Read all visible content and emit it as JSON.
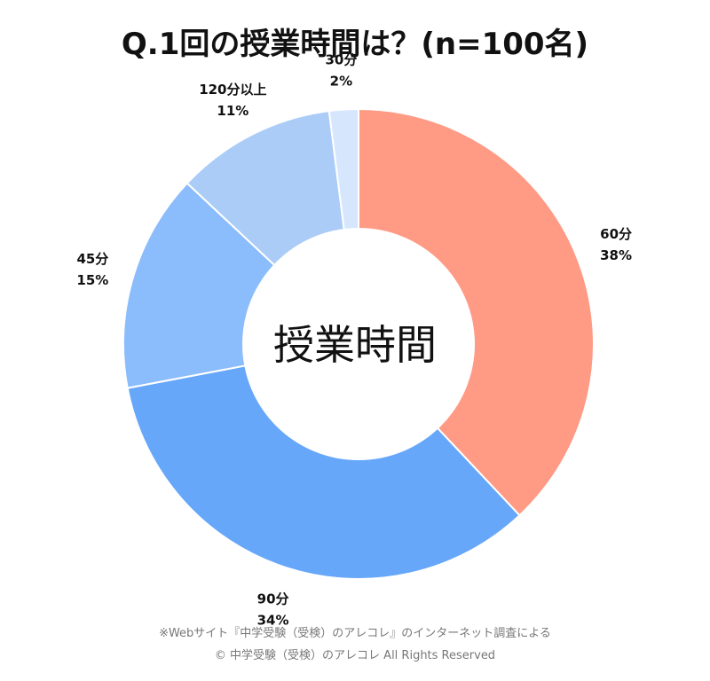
{
  "chart_data": {
    "type": "pie",
    "title": "Q.1回の授業時間は？(n=100名)",
    "center_label": "授業時間",
    "slices": [
      {
        "name": "60分",
        "value": 38,
        "label": "38%",
        "color": "#FF9A85"
      },
      {
        "name": "90分",
        "value": 34,
        "label": "34%",
        "color": "#66A7FA"
      },
      {
        "name": "45分",
        "value": 15,
        "label": "15%",
        "color": "#8BBCFC"
      },
      {
        "name": "120分以上",
        "value": 11,
        "label": "11%",
        "color": "#AACCF7"
      },
      {
        "name": "30分",
        "value": 2,
        "label": "2%",
        "color": "#D6E7FD"
      }
    ],
    "legend": "none"
  },
  "footer": {
    "note": "※Webサイト『中学受験（受検）のアレコレ』のインターネット調査による",
    "copyright": "© 中学受験（受検）のアレコレ All Rights Reserved"
  }
}
